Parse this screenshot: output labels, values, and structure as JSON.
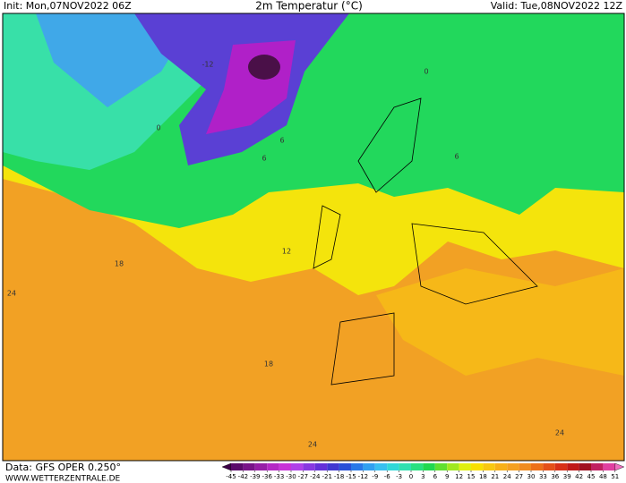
{
  "header": {
    "init": "Init: Mon,07NOV2022 06Z",
    "title": "2m Temperatur (°C)",
    "valid": "Valid: Tue,08NOV2022 12Z"
  },
  "footer": {
    "data_source": "Data: GFS OPER 0.250°",
    "website": "WWW.WETTERZENTRALE.DE"
  },
  "map": {
    "contour_labels": [
      "-12",
      "0",
      "6",
      "6",
      "0",
      "6",
      "12",
      "18",
      "24",
      "18",
      "24",
      "24"
    ]
  },
  "color_scale": {
    "ticks": [
      -45,
      -42,
      -39,
      -36,
      -33,
      -30,
      -27,
      -24,
      -21,
      -18,
      -15,
      -12,
      -9,
      -6,
      -3,
      0,
      3,
      6,
      9,
      12,
      15,
      18,
      21,
      24,
      27,
      30,
      33,
      36,
      39,
      42,
      45,
      48,
      51
    ],
    "colors": [
      "#3c0046",
      "#5a0a6a",
      "#781488",
      "#961ea6",
      "#b428c4",
      "#c832d8",
      "#b040e8",
      "#8838e0",
      "#6430d8",
      "#4038d0",
      "#2850d8",
      "#2878e8",
      "#30a0f0",
      "#38c0f0",
      "#30d8d8",
      "#30e0b0",
      "#28e080",
      "#20d850",
      "#60e030",
      "#a0e820",
      "#e0f010",
      "#f8e000",
      "#f8c810",
      "#f8b018",
      "#f4a020",
      "#f08c20",
      "#ec7018",
      "#e45018",
      "#d83018",
      "#c01818",
      "#a01020",
      "#c02060",
      "#e040a0",
      "#f070c0"
    ]
  }
}
